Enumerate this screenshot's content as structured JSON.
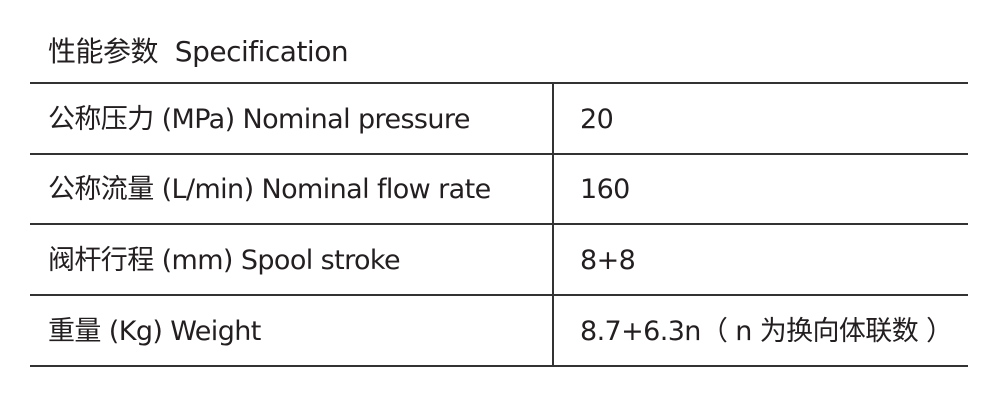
{
  "header": {
    "title": "性能参数  Specification"
  },
  "table": {
    "rows": [
      [
        "公称压力 (MPa) Nominal pressure",
        "20"
      ],
      [
        "公称流量 (L/min) Nominal flow rate",
        "160"
      ],
      [
        "阀杆行程 (mm) Spool stroke",
        "8+8"
      ],
      [
        "重量 (Kg) Weight",
        "8.7+6.3n（ n 为换向体联数 ）"
      ]
    ]
  }
}
